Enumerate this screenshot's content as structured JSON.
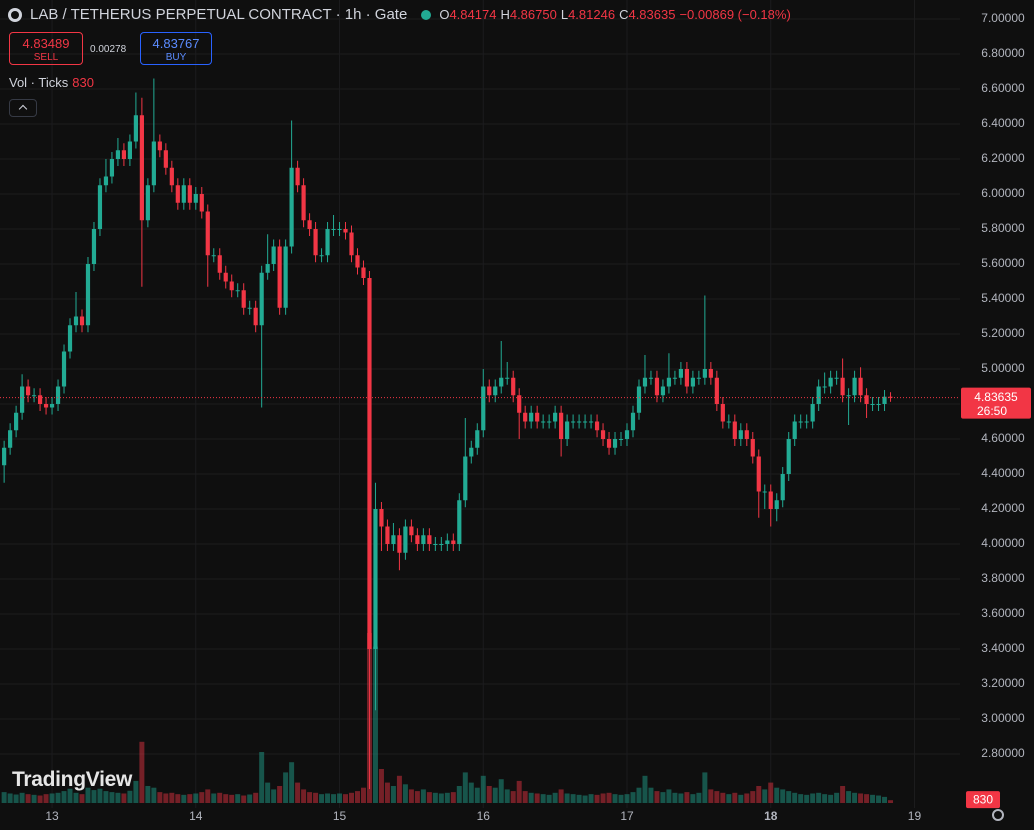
{
  "chart_data": {
    "type": "candlestick",
    "title": "LAB / TETHERUS PERPETUAL CONTRACT · 1h · Gate",
    "readout": [
      {
        "key": "O",
        "value": "4.84174"
      },
      {
        "key": "H",
        "value": "4.86750"
      },
      {
        "key": "L",
        "value": "4.81246"
      },
      {
        "key": "C",
        "value": "4.83635"
      }
    ],
    "change": "−0.00869 (−0.18%)",
    "sell": {
      "price": "4.83489",
      "label": "SELL"
    },
    "spread": "0.00278",
    "buy": {
      "price": "4.83767",
      "label": "BUY"
    },
    "volume_label": "Vol · Ticks",
    "countdown": "26:50",
    "brand": "TradingView",
    "up_color": "#22ab94",
    "down_color": "#f23645",
    "grid": true,
    "xlim": [
      -8.69,
      151.6
    ],
    "ylim": [
      2.4914,
      7.1086
    ],
    "xticks": [
      {
        "value": 0,
        "label": "13"
      },
      {
        "value": 24,
        "label": "14"
      },
      {
        "value": 48,
        "label": "15"
      },
      {
        "value": 72,
        "label": "16"
      },
      {
        "value": 96,
        "label": "17"
      },
      {
        "value": 120,
        "label": "18"
      },
      {
        "value": 144,
        "label": "19"
      }
    ],
    "yticks": [
      {
        "value": 2.8,
        "label": "2.80000"
      },
      {
        "value": 3.0,
        "label": "3.00000"
      },
      {
        "value": 3.2,
        "label": "3.20000"
      },
      {
        "value": 3.4,
        "label": "3.40000"
      },
      {
        "value": 3.6,
        "label": "3.60000"
      },
      {
        "value": 3.8,
        "label": "3.80000"
      },
      {
        "value": 4.0,
        "label": "4.00000"
      },
      {
        "value": 4.2,
        "label": "4.20000"
      },
      {
        "value": 4.4,
        "label": "4.40000"
      },
      {
        "value": 4.6,
        "label": "4.60000"
      },
      {
        "value": 4.8,
        "label": "4.80000"
      },
      {
        "value": 5.0,
        "label": "5.00000"
      },
      {
        "value": 5.2,
        "label": "5.20000"
      },
      {
        "value": 5.4,
        "label": "5.40000"
      },
      {
        "value": 5.6,
        "label": "5.60000"
      },
      {
        "value": 5.8,
        "label": "5.80000"
      },
      {
        "value": 6.0,
        "label": "6.00000"
      },
      {
        "value": 6.2,
        "label": "6.20000"
      },
      {
        "value": 6.4,
        "label": "6.40000"
      },
      {
        "value": 6.6,
        "label": "6.60000"
      },
      {
        "value": 6.8,
        "label": "6.80000"
      },
      {
        "value": 7.0,
        "label": "7.00000"
      }
    ],
    "x": [
      -8,
      -7,
      -6,
      -5,
      -4,
      -3,
      -2,
      -1,
      0,
      1,
      2,
      3,
      4,
      5,
      6,
      7,
      8,
      9,
      10,
      11,
      12,
      13,
      14,
      15,
      16,
      17,
      18,
      19,
      20,
      21,
      22,
      23,
      24,
      25,
      26,
      27,
      28,
      29,
      30,
      31,
      32,
      33,
      34,
      35,
      36,
      37,
      38,
      39,
      40,
      41,
      42,
      43,
      44,
      45,
      46,
      47,
      48,
      49,
      50,
      51,
      52,
      53,
      54,
      55,
      56,
      57,
      58,
      59,
      60,
      61,
      62,
      63,
      64,
      65,
      66,
      67,
      68,
      69,
      70,
      71,
      72,
      73,
      74,
      75,
      76,
      77,
      78,
      79,
      80,
      81,
      82,
      83,
      84,
      85,
      86,
      87,
      88,
      89,
      90,
      91,
      92,
      93,
      94,
      95,
      96,
      97,
      98,
      99,
      100,
      101,
      102,
      103,
      104,
      105,
      106,
      107,
      108,
      109,
      110,
      111,
      112,
      113,
      114,
      115,
      116,
      117,
      118,
      119,
      120,
      121,
      122,
      123,
      124,
      125,
      126,
      127,
      128,
      129,
      130,
      131,
      132,
      133,
      134,
      135,
      136,
      137,
      138,
      139,
      140
    ],
    "open": [
      4.45,
      4.55,
      4.65,
      4.75,
      4.9,
      4.85,
      4.85,
      4.8,
      4.78,
      4.8,
      4.9,
      5.1,
      5.25,
      5.3,
      5.25,
      5.6,
      5.8,
      6.05,
      6.1,
      6.2,
      6.25,
      6.2,
      6.3,
      6.45,
      5.85,
      6.05,
      6.3,
      6.25,
      6.15,
      6.05,
      5.95,
      6.05,
      5.95,
      6.0,
      5.9,
      5.65,
      5.65,
      5.55,
      5.5,
      5.45,
      5.45,
      5.35,
      5.35,
      5.25,
      5.55,
      5.6,
      5.7,
      5.35,
      5.7,
      6.15,
      6.05,
      5.85,
      5.8,
      5.65,
      5.65,
      5.8,
      5.8,
      5.8,
      5.78,
      5.65,
      5.58,
      5.52,
      3.4,
      4.2,
      4.1,
      4.0,
      4.05,
      3.95,
      4.1,
      4.05,
      4.0,
      4.05,
      4.0,
      4.0,
      4.0,
      4.02,
      4.0,
      4.25,
      4.5,
      4.55,
      4.65,
      4.9,
      4.85,
      4.9,
      4.95,
      4.95,
      4.85,
      4.75,
      4.7,
      4.75,
      4.7,
      4.7,
      4.7,
      4.75,
      4.6,
      4.7,
      4.7,
      4.7,
      4.7,
      4.7,
      4.65,
      4.6,
      4.55,
      4.6,
      4.6,
      4.65,
      4.75,
      4.9,
      4.95,
      4.95,
      4.85,
      4.9,
      4.95,
      4.95,
      5.0,
      4.9,
      4.95,
      4.95,
      5.0,
      4.95,
      4.8,
      4.7,
      4.7,
      4.6,
      4.65,
      4.6,
      4.5,
      4.3,
      4.3,
      4.2,
      4.25,
      4.4,
      4.6,
      4.7,
      4.7,
      4.7,
      4.8,
      4.9,
      4.9,
      4.95,
      4.95,
      4.85,
      4.85,
      4.95,
      4.85,
      4.8,
      4.8,
      4.8,
      4.84174
    ],
    "high": [
      4.59,
      4.69,
      4.79,
      4.97,
      4.94,
      4.89,
      4.89,
      4.84,
      4.84,
      4.94,
      5.14,
      5.29,
      5.44,
      5.34,
      5.64,
      5.84,
      6.09,
      6.2,
      6.24,
      6.32,
      6.29,
      6.34,
      6.58,
      6.55,
      6.09,
      6.66,
      6.34,
      6.29,
      6.19,
      6.09,
      6.09,
      6.09,
      6.04,
      6.04,
      5.94,
      5.69,
      5.69,
      5.59,
      5.54,
      5.49,
      5.49,
      5.39,
      5.39,
      5.59,
      5.77,
      5.74,
      5.74,
      5.74,
      6.42,
      6.19,
      6.09,
      5.89,
      5.84,
      5.69,
      5.84,
      5.88,
      5.84,
      5.84,
      5.82,
      5.69,
      5.62,
      5.56,
      4.35,
      4.24,
      4.14,
      4.12,
      4.09,
      4.14,
      4.14,
      4.09,
      4.09,
      4.09,
      4.04,
      4.04,
      4.06,
      4.06,
      4.29,
      4.72,
      4.59,
      4.69,
      5.0,
      4.94,
      4.94,
      5.16,
      5.04,
      4.99,
      4.89,
      4.79,
      4.79,
      4.79,
      4.74,
      4.74,
      4.79,
      4.79,
      4.74,
      4.74,
      4.74,
      4.74,
      4.74,
      4.74,
      4.69,
      4.64,
      4.64,
      4.64,
      4.69,
      4.79,
      4.94,
      5.08,
      4.99,
      4.99,
      4.94,
      5.09,
      4.99,
      5.04,
      5.04,
      4.99,
      4.99,
      5.42,
      5.04,
      4.99,
      4.84,
      4.74,
      4.74,
      4.69,
      4.69,
      4.64,
      4.54,
      4.34,
      4.34,
      4.29,
      4.44,
      4.64,
      4.74,
      4.74,
      4.74,
      4.84,
      4.94,
      4.98,
      4.99,
      4.99,
      5.06,
      4.89,
      4.99,
      5.01,
      4.89,
      4.84,
      4.84,
      4.88,
      4.8675
    ],
    "low": [
      4.35,
      4.51,
      4.61,
      4.71,
      4.81,
      4.81,
      4.76,
      4.74,
      4.74,
      4.76,
      4.86,
      5.06,
      5.21,
      5.21,
      5.21,
      5.56,
      5.76,
      6.01,
      6.06,
      6.16,
      6.16,
      6.16,
      6.26,
      5.47,
      5.81,
      6.01,
      6.21,
      6.11,
      6.01,
      5.91,
      5.91,
      5.91,
      5.91,
      5.86,
      5.47,
      5.61,
      5.51,
      5.46,
      5.41,
      5.41,
      5.31,
      5.31,
      5.21,
      4.78,
      5.51,
      5.56,
      5.31,
      5.31,
      5.66,
      6.01,
      5.81,
      5.76,
      5.61,
      5.61,
      5.61,
      5.76,
      5.76,
      5.74,
      5.61,
      5.54,
      5.48,
      2.6,
      3.05,
      3.96,
      3.96,
      3.96,
      3.85,
      3.91,
      4.01,
      3.96,
      3.96,
      3.96,
      3.96,
      3.96,
      3.96,
      3.96,
      3.96,
      4.21,
      4.46,
      4.51,
      4.61,
      4.81,
      4.81,
      4.86,
      4.91,
      4.81,
      4.6,
      4.66,
      4.66,
      4.66,
      4.66,
      4.66,
      4.66,
      4.5,
      4.56,
      4.66,
      4.66,
      4.66,
      4.66,
      4.61,
      4.56,
      4.51,
      4.51,
      4.56,
      4.56,
      4.61,
      4.71,
      4.86,
      4.91,
      4.81,
      4.81,
      4.86,
      4.91,
      4.91,
      4.86,
      4.86,
      4.91,
      4.91,
      4.91,
      4.76,
      4.66,
      4.66,
      4.56,
      4.56,
      4.56,
      4.46,
      4.15,
      4.2,
      4.1,
      4.13,
      4.21,
      4.36,
      4.56,
      4.66,
      4.66,
      4.66,
      4.76,
      4.86,
      4.86,
      4.91,
      4.81,
      4.68,
      4.81,
      4.81,
      4.72,
      4.76,
      4.76,
      4.76,
      4.81246
    ],
    "close": [
      4.55,
      4.65,
      4.75,
      4.9,
      4.85,
      4.85,
      4.8,
      4.78,
      4.8,
      4.9,
      5.1,
      5.25,
      5.3,
      5.25,
      5.6,
      5.8,
      6.05,
      6.1,
      6.2,
      6.25,
      6.2,
      6.3,
      6.45,
      5.85,
      6.05,
      6.3,
      6.25,
      6.15,
      6.05,
      5.95,
      6.05,
      5.95,
      6.0,
      5.9,
      5.65,
      5.65,
      5.55,
      5.5,
      5.45,
      5.45,
      5.35,
      5.35,
      5.25,
      5.55,
      5.6,
      5.7,
      5.35,
      5.7,
      6.15,
      6.05,
      5.85,
      5.8,
      5.65,
      5.65,
      5.8,
      5.8,
      5.8,
      5.78,
      5.65,
      5.58,
      5.52,
      3.4,
      4.2,
      4.1,
      4.0,
      4.05,
      3.95,
      4.1,
      4.05,
      4.0,
      4.05,
      4.0,
      4.0,
      4.0,
      4.02,
      4.0,
      4.25,
      4.5,
      4.55,
      4.65,
      4.9,
      4.85,
      4.9,
      4.95,
      4.95,
      4.85,
      4.75,
      4.7,
      4.75,
      4.7,
      4.7,
      4.7,
      4.75,
      4.6,
      4.7,
      4.7,
      4.7,
      4.7,
      4.7,
      4.65,
      4.6,
      4.55,
      4.6,
      4.6,
      4.65,
      4.75,
      4.9,
      4.95,
      4.95,
      4.85,
      4.9,
      4.95,
      4.95,
      5.0,
      4.9,
      4.95,
      4.95,
      5.0,
      4.95,
      4.8,
      4.7,
      4.7,
      4.6,
      4.65,
      4.6,
      4.5,
      4.3,
      4.3,
      4.2,
      4.25,
      4.4,
      4.6,
      4.7,
      4.7,
      4.7,
      4.8,
      4.9,
      4.9,
      4.95,
      4.95,
      4.85,
      4.85,
      4.95,
      4.85,
      4.8,
      4.8,
      4.8,
      4.84174,
      4.83635
    ],
    "volume": [
      3200,
      2800,
      2500,
      3000,
      2600,
      2400,
      2200,
      2600,
      2800,
      3000,
      3500,
      4200,
      3000,
      2600,
      4500,
      3800,
      4200,
      3500,
      3200,
      3000,
      2800,
      3600,
      6500,
      18000,
      5000,
      4500,
      3200,
      2800,
      3000,
      2600,
      2400,
      2600,
      2800,
      3200,
      4000,
      2800,
      3000,
      2600,
      2400,
      2600,
      2200,
      2500,
      3000,
      15000,
      6000,
      4000,
      5000,
      9000,
      12000,
      6000,
      4000,
      3200,
      3000,
      2600,
      2800,
      2600,
      2800,
      2600,
      3000,
      3500,
      4500,
      50000,
      46000,
      10000,
      6000,
      5000,
      8000,
      5500,
      4000,
      3500,
      4000,
      3200,
      3000,
      2800,
      3000,
      3200,
      5000,
      9000,
      6000,
      4500,
      8000,
      5000,
      4500,
      7000,
      4000,
      3500,
      6500,
      3500,
      3000,
      2800,
      2600,
      2400,
      3000,
      4000,
      2800,
      2600,
      2400,
      2200,
      2600,
      2400,
      2800,
      3000,
      2600,
      2400,
      2600,
      3200,
      4500,
      8000,
      4500,
      3500,
      3200,
      4000,
      3000,
      2800,
      3200,
      2600,
      3000,
      9000,
      4000,
      3500,
      3000,
      2600,
      3000,
      2400,
      2800,
      3500,
      5000,
      4000,
      6000,
      4500,
      4000,
      3500,
      3000,
      2600,
      2400,
      2800,
      3000,
      2600,
      2400,
      3000,
      5000,
      3500,
      3000,
      2800,
      2600,
      2400,
      2200,
      1800,
      830
    ]
  }
}
